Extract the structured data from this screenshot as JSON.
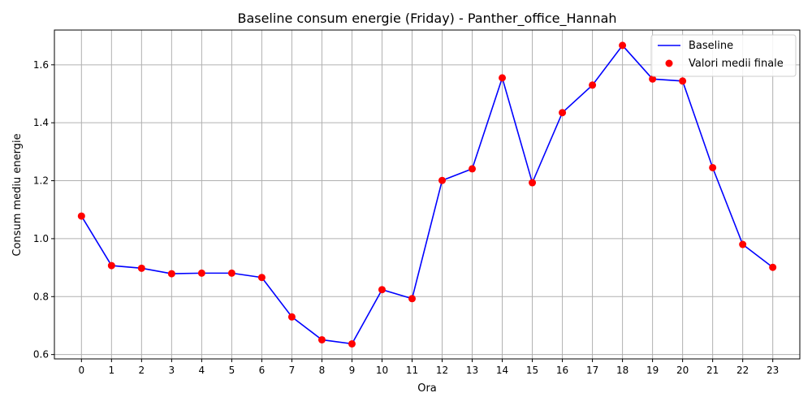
{
  "chart_data": {
    "type": "line",
    "title": "Baseline consum energie (Friday) - Panther_office_Hannah",
    "xlabel": "Ora",
    "ylabel": "Consum mediu energie",
    "x": [
      0,
      1,
      2,
      3,
      4,
      5,
      6,
      7,
      8,
      9,
      10,
      11,
      12,
      13,
      14,
      15,
      16,
      17,
      18,
      19,
      20,
      21,
      22,
      23
    ],
    "x_tick_labels": [
      "0",
      "1",
      "2",
      "3",
      "4",
      "5",
      "6",
      "7",
      "8",
      "9",
      "10",
      "11",
      "12",
      "13",
      "14",
      "15",
      "16",
      "17",
      "18",
      "19",
      "20",
      "21",
      "22",
      "23"
    ],
    "y_ticks": [
      0.6,
      0.8,
      1.0,
      1.2,
      1.4,
      1.6
    ],
    "y_tick_labels": [
      "0.6",
      "0.8",
      "1.0",
      "1.2",
      "1.4",
      "1.6"
    ],
    "xlim": [
      -0.9,
      23.9
    ],
    "ylim": [
      0.585,
      1.72
    ],
    "grid": true,
    "legend_position": "top-right",
    "series": [
      {
        "name": "Baseline",
        "kind": "line",
        "color": "#0000ff",
        "values": [
          1.078,
          0.907,
          0.898,
          0.879,
          0.881,
          0.881,
          0.866,
          0.73,
          0.651,
          0.637,
          0.824,
          0.793,
          1.201,
          1.241,
          1.555,
          1.193,
          1.435,
          1.53,
          1.667,
          1.551,
          1.544,
          1.245,
          0.98,
          0.901
        ]
      },
      {
        "name": "Valori medii finale",
        "kind": "scatter",
        "color": "#ff0000",
        "values": [
          1.078,
          0.907,
          0.898,
          0.879,
          0.881,
          0.881,
          0.866,
          0.73,
          0.651,
          0.637,
          0.824,
          0.793,
          1.201,
          1.241,
          1.555,
          1.193,
          1.435,
          1.53,
          1.667,
          1.551,
          1.544,
          1.245,
          0.98,
          0.901
        ]
      }
    ]
  }
}
